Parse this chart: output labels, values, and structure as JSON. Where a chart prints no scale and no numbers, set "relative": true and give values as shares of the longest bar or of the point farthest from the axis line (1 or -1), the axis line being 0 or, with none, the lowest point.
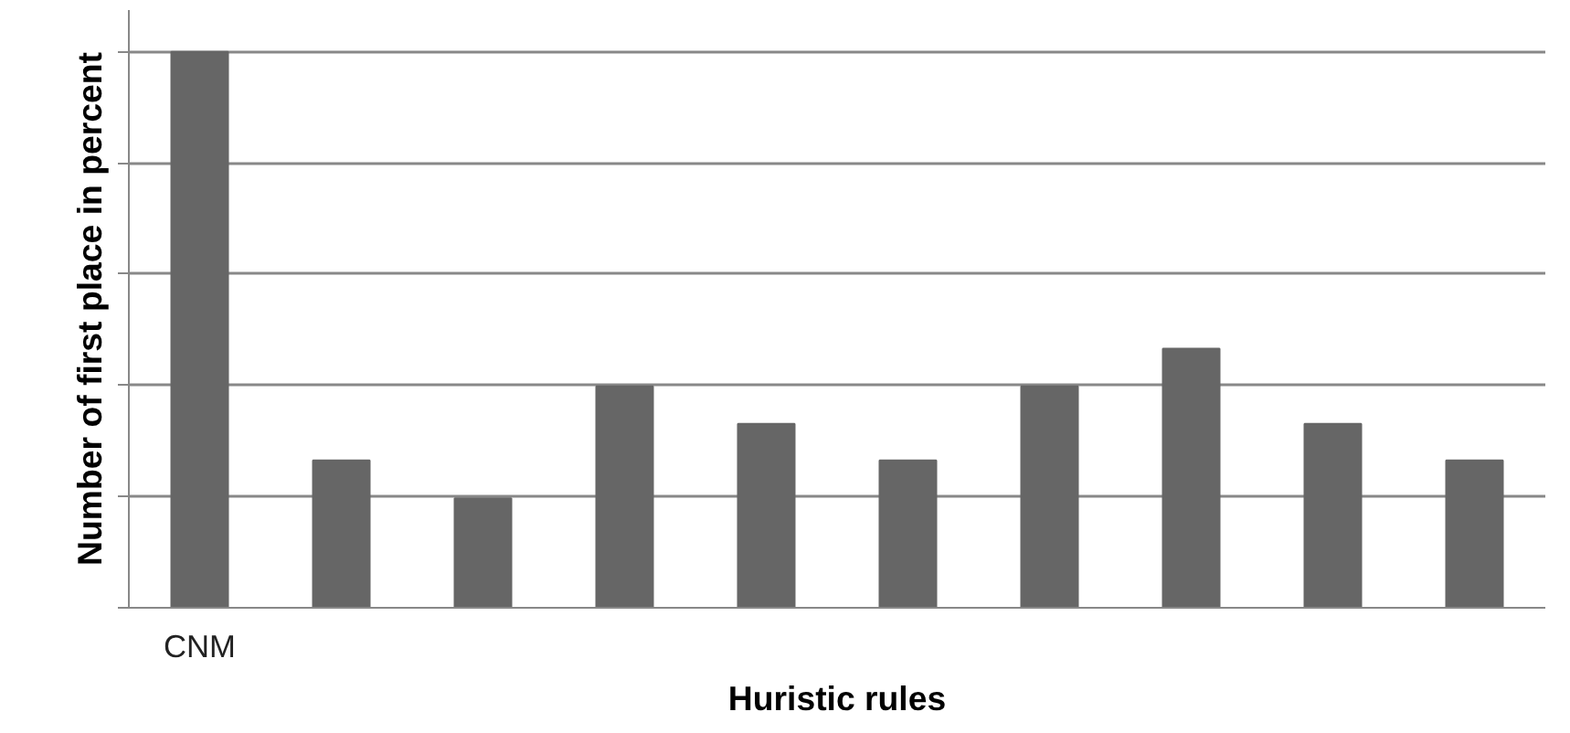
{
  "chart_data": {
    "type": "bar",
    "xlabel": "Huristic rules",
    "ylabel": "Number of first place in percent",
    "relative": true,
    "grid": "y",
    "categories": [
      "CNM",
      null,
      null,
      null,
      null,
      null,
      null,
      null,
      null,
      null
    ],
    "values": [
      1,
      0.265,
      0.197,
      0.398,
      0.331,
      0.265,
      0.398,
      0.466,
      0.331,
      0.265
    ],
    "color": "#666666"
  }
}
